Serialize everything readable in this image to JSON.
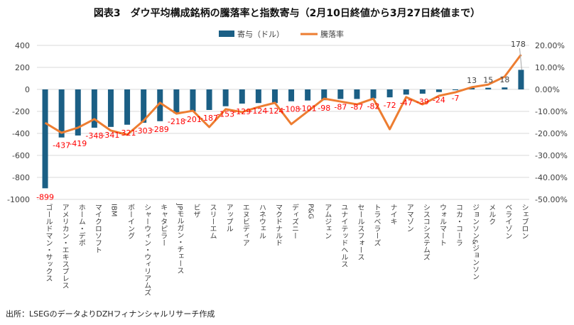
{
  "chart_data": {
    "type": "bar",
    "title": "図表3　ダウ平均構成銘柄の騰落率と指数寄与（2月10日終値から3月27日終値まで）",
    "categories": [
      "ゴールドマン・サックス",
      "アメリカン・エキスプレス",
      "ホーム・デポ",
      "マイクロソフト",
      "IBM",
      "ボーイング",
      "シャーウィン・ウィリアムズ",
      "キャタピラー",
      "JPモルガン・チェース",
      "ビザ",
      "スリーエム",
      "アップル",
      "エヌビディア",
      "ハネウェル",
      "マクドナルド",
      "ディズニー",
      "P&G",
      "アムジェン",
      "ユナイテッドヘルス",
      "セールスフォース",
      "トラベラーズ",
      "ナイキ",
      "アマゾン",
      "シスコシステムズ",
      "ウォルマート",
      "コカ・コーラ",
      "ジョンソン&ジョンソン",
      "メルク",
      "ベライゾン",
      "シェブロン"
    ],
    "series": [
      {
        "name": "寄与（ドル）",
        "type": "bar",
        "axis": "left",
        "color": "#1b5f85",
        "values": [
          -899,
          -437,
          -419,
          -348,
          -341,
          -321,
          -303,
          -289,
          -218,
          -201,
          -187,
          -153,
          -129,
          -124,
          -124,
          -108,
          -101,
          -98,
          -87,
          -87,
          -82,
          -72,
          -47,
          -39,
          -24,
          -7,
          13,
          15,
          18,
          178
        ]
      },
      {
        "name": "騰落率",
        "type": "line",
        "axis": "right",
        "color": "#ed7d31",
        "values": [
          -15.2,
          -19.7,
          -17.4,
          -13.5,
          -18.7,
          -20.6,
          -14.2,
          -6.1,
          -11.0,
          -9.7,
          -17.1,
          -9.0,
          -10.3,
          -8.0,
          -6.1,
          -15.8,
          -10.0,
          -4.2,
          -5.5,
          -6.8,
          -4.2,
          -18.1,
          -3.5,
          -6.8,
          -2.9,
          -1.3,
          1.0,
          2.2,
          5.8,
          15.8
        ]
      }
    ],
    "left_axis": {
      "ylim": [
        -1000,
        400
      ],
      "ticks": [
        "400",
        "200",
        "0",
        "-200",
        "-400",
        "-600",
        "-800",
        "-1000"
      ]
    },
    "right_axis": {
      "ylim": [
        -50,
        20
      ],
      "ticks": [
        "20.00%",
        "10.00%",
        "0.00%",
        "-10.00%",
        "-20.00%",
        "-30.00%",
        "-40.00%",
        "-50.00%"
      ]
    },
    "data_labels": [
      "-899",
      "-437",
      "-419",
      "-348",
      "-341",
      "-321",
      "-303",
      "-289",
      "-218",
      "-201",
      "-187",
      "-153",
      "-129",
      "-124",
      "-124",
      "-108",
      "-101",
      "-98",
      "-87",
      "-87",
      "-82",
      "-72",
      "-47",
      "-39",
      "-24",
      "-7",
      "13",
      "15",
      "18",
      "178"
    ],
    "legend": {
      "placement": "top",
      "items": [
        "寄与（ドル）",
        "騰落率"
      ]
    },
    "grid": true,
    "label_colors": {
      "negative": "#ff0000",
      "positive": "#404040"
    }
  },
  "source": "出所：LSEGのデータよりDZHフィナンシャルリサーチ作成"
}
